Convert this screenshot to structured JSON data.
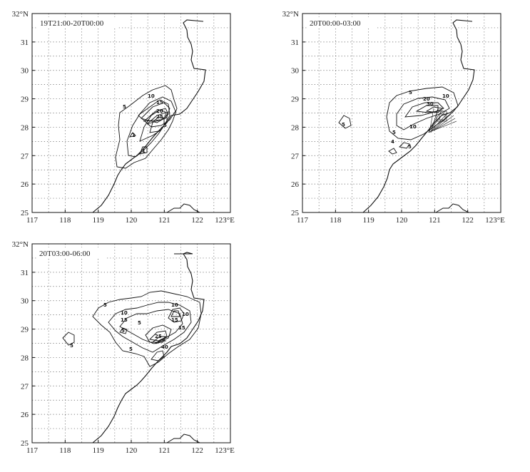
{
  "panels": [
    {
      "id": "p1",
      "time_label": "19T21:00-20T00:00",
      "contour_labels": [
        "10",
        "5",
        "15",
        "20",
        "25",
        "5",
        "1",
        "1"
      ]
    },
    {
      "id": "p2",
      "time_label": "20T00:00-03:00",
      "contour_labels": [
        "5",
        "10",
        "20",
        "30",
        "5",
        "10",
        "5",
        "4",
        "5"
      ]
    },
    {
      "id": "p3",
      "time_label": "20T03:00-06:00",
      "contour_labels": [
        "5",
        "10",
        "10",
        "15",
        "15",
        "5",
        "10",
        "15",
        "25",
        "40",
        "5",
        "5",
        "5"
      ]
    }
  ],
  "axes": {
    "y_ticks": [
      "25",
      "26",
      "27",
      "28",
      "29",
      "30",
      "31",
      "32°N"
    ],
    "x_ticks": [
      "117",
      "118",
      "119",
      "120",
      "121",
      "122",
      "123°E"
    ],
    "lon_range": [
      117,
      123
    ],
    "lat_range": [
      25,
      32
    ]
  },
  "colors": {
    "line": "#111111",
    "grid": "#555555",
    "background": "#ffffff"
  }
}
